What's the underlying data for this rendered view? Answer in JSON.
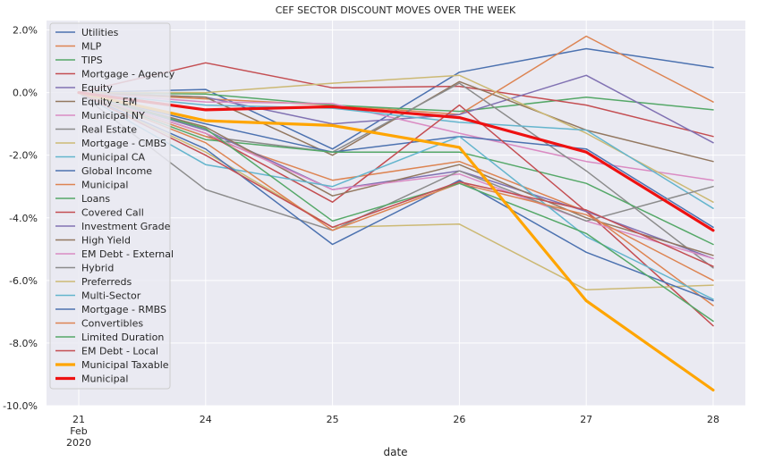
{
  "chart_data": {
    "type": "line",
    "title": "CEF SECTOR DISCOUNT MOVES OVER THE WEEK",
    "xlabel": "date",
    "ylabel": "",
    "x": [
      "21",
      "24",
      "25",
      "26",
      "27",
      "28"
    ],
    "x_tick_labels": [
      [
        "21",
        "Feb",
        "2020"
      ],
      [
        "24"
      ],
      [
        "25"
      ],
      [
        "26"
      ],
      [
        "27"
      ],
      [
        "28"
      ]
    ],
    "ylim": [
      -10.0,
      2.3
    ],
    "y_ticks": [
      -10.0,
      -8.0,
      -6.0,
      -4.0,
      -2.0,
      0.0,
      2.0
    ],
    "y_tick_labels": [
      "-10.0%",
      "-8.0%",
      "-6.0%",
      "-4.0%",
      "-2.0%",
      "0.0%",
      "2.0%"
    ],
    "grid": true,
    "legend_position": "top-left",
    "series": [
      {
        "name": "Utilities",
        "color": "#4c72b0",
        "width": 1.5,
        "values": [
          0.0,
          0.1,
          -1.8,
          0.65,
          1.4,
          0.8
        ]
      },
      {
        "name": "MLP",
        "color": "#dd8452",
        "width": 1.5,
        "values": [
          0.0,
          -0.2,
          -0.4,
          -0.7,
          1.8,
          -0.3
        ]
      },
      {
        "name": "TIPS",
        "color": "#55a868",
        "width": 1.5,
        "values": [
          0.0,
          -0.05,
          -0.4,
          -0.6,
          -0.15,
          -0.55
        ]
      },
      {
        "name": "Mortgage - Agency",
        "color": "#c44e52",
        "width": 1.5,
        "values": [
          0.0,
          0.95,
          0.15,
          0.2,
          -0.4,
          -1.4
        ]
      },
      {
        "name": "Equity",
        "color": "#8172b3",
        "width": 1.5,
        "values": [
          0.0,
          -0.15,
          -1.0,
          -0.7,
          0.55,
          -1.6
        ]
      },
      {
        "name": "Equity - EM",
        "color": "#937860",
        "width": 1.5,
        "values": [
          0.0,
          -0.15,
          -2.0,
          0.35,
          -1.2,
          -2.2
        ]
      },
      {
        "name": "Municipal NY",
        "color": "#da8bc3",
        "width": 1.5,
        "values": [
          0.0,
          -0.3,
          -0.35,
          -1.3,
          -2.2,
          -2.8
        ]
      },
      {
        "name": "Real Estate",
        "color": "#8c8c8c",
        "width": 1.5,
        "values": [
          0.0,
          -1.4,
          -1.9,
          0.3,
          -2.5,
          -5.6
        ]
      },
      {
        "name": "Mortgage - CMBS",
        "color": "#ccb974",
        "width": 1.5,
        "values": [
          0.0,
          0.0,
          0.3,
          0.55,
          -1.3,
          -3.5
        ]
      },
      {
        "name": "Municipal CA",
        "color": "#64b5cd",
        "width": 1.5,
        "values": [
          0.0,
          -0.4,
          -0.5,
          -0.95,
          -1.2,
          -3.7
        ]
      },
      {
        "name": "Global Income",
        "color": "#4c72b0",
        "width": 1.5,
        "values": [
          0.0,
          -1.0,
          -1.9,
          -1.4,
          -1.8,
          -4.3
        ]
      },
      {
        "name": "Municipal",
        "color": "#dd8452",
        "width": 1.5,
        "values": [
          0.0,
          -1.4,
          -2.8,
          -2.2,
          -3.8,
          -6.8
        ]
      },
      {
        "name": "Loans",
        "color": "#55a868",
        "width": 1.5,
        "values": [
          0.0,
          -1.5,
          -1.9,
          -1.9,
          -2.9,
          -4.85
        ]
      },
      {
        "name": "Covered Call",
        "color": "#c44e52",
        "width": 1.5,
        "values": [
          0.0,
          -1.3,
          -3.5,
          -0.4,
          -3.8,
          -7.45
        ]
      },
      {
        "name": "Investment Grade",
        "color": "#8172b3",
        "width": 1.5,
        "values": [
          0.0,
          -1.2,
          -3.1,
          -2.5,
          -3.8,
          -5.3
        ]
      },
      {
        "name": "High Yield",
        "color": "#937860",
        "width": 1.5,
        "values": [
          0.0,
          -1.1,
          -3.3,
          -2.3,
          -4.0,
          -5.2
        ]
      },
      {
        "name": "EM Debt - External",
        "color": "#da8bc3",
        "width": 1.5,
        "values": [
          0.0,
          -1.3,
          -3.1,
          -2.6,
          -4.1,
          -5.3
        ]
      },
      {
        "name": "Hybrid",
        "color": "#8c8c8c",
        "width": 1.5,
        "values": [
          0.0,
          -3.1,
          -4.4,
          -2.5,
          -4.1,
          -3.0
        ]
      },
      {
        "name": "Preferreds",
        "color": "#ccb974",
        "width": 1.5,
        "values": [
          0.0,
          -1.9,
          -4.3,
          -4.2,
          -6.3,
          -6.15
        ]
      },
      {
        "name": "Multi-Sector",
        "color": "#64b5cd",
        "width": 1.5,
        "values": [
          0.0,
          -2.3,
          -3.0,
          -1.4,
          -4.6,
          -6.6
        ]
      },
      {
        "name": "Mortgage - RMBS",
        "color": "#4c72b0",
        "width": 1.5,
        "values": [
          0.0,
          -1.8,
          -4.85,
          -2.8,
          -5.1,
          -6.65
        ]
      },
      {
        "name": "Convertibles",
        "color": "#dd8452",
        "width": 1.5,
        "values": [
          0.0,
          -1.6,
          -4.4,
          -2.9,
          -3.9,
          -6.0
        ]
      },
      {
        "name": "Limited Duration",
        "color": "#55a868",
        "width": 1.5,
        "values": [
          0.0,
          -1.15,
          -4.1,
          -2.9,
          -4.5,
          -7.3
        ]
      },
      {
        "name": "EM Debt - Local",
        "color": "#c44e52",
        "width": 1.5,
        "values": [
          0.0,
          -2.0,
          -4.3,
          -2.85,
          -3.75,
          -5.55
        ]
      },
      {
        "name": "Municipal Taxable",
        "color": "#ffa500",
        "width": 3.2,
        "values": [
          0.0,
          -0.9,
          -1.05,
          -1.75,
          -6.65,
          -9.5
        ]
      },
      {
        "name": "Municipal",
        "color": "#ee1111",
        "width": 3.2,
        "values": [
          0.0,
          -0.55,
          -0.45,
          -0.8,
          -1.9,
          -4.4
        ]
      }
    ]
  }
}
